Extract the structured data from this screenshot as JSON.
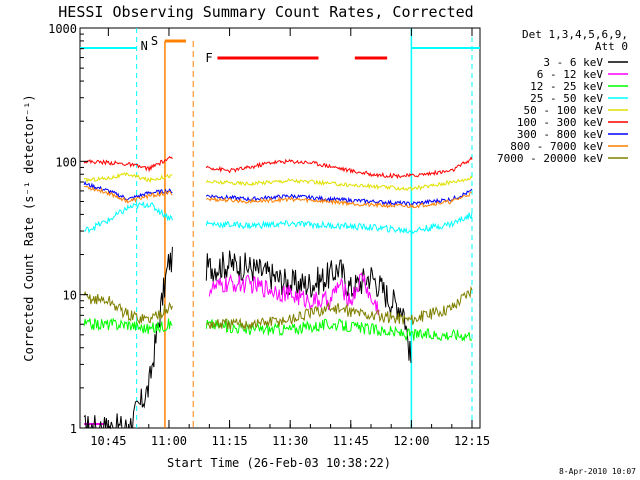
{
  "chart_data": {
    "type": "line",
    "title": "HESSI Observing Summary Count Rates, Corrected",
    "xlabel": "Start Time (26-Feb-03 10:38:22)",
    "ylabel": "Corrected Count Rate (s⁻¹ detector⁻¹)",
    "ylim": [
      1,
      1000
    ],
    "yscale": "log",
    "xlim_minutes": [
      10.633,
      12.283
    ],
    "x_ticks": [
      "10:45",
      "11:00",
      "11:15",
      "11:30",
      "11:45",
      "12:00",
      "12:15"
    ],
    "y_ticks": [
      "1",
      "10",
      "100",
      "1000"
    ],
    "legend_header": [
      "Det 1,3,4,5,6,9,",
      "Att 0"
    ],
    "legend_position": "right",
    "series": [
      {
        "name": "3 - 6 keV",
        "color": "#000000",
        "x": [
          "10:39",
          "10:45",
          "10:50",
          "10:55",
          "10:58",
          "11:00",
          "11:10",
          "11:15",
          "11:20",
          "11:25",
          "11:30",
          "11:35",
          "11:40",
          "11:42",
          "11:45",
          "11:50",
          "11:55",
          "11:58",
          "12:00"
        ],
        "y": [
          1,
          1,
          1,
          2,
          8,
          18,
          16,
          17,
          16,
          14,
          12,
          12,
          14,
          16,
          11,
          14,
          9,
          8,
          3
        ]
      },
      {
        "name": "6 - 12 keV",
        "color": "#ff00ff",
        "x": [
          "11:10",
          "11:15",
          "11:20",
          "11:25",
          "11:30",
          "11:35",
          "11:40",
          "11:42",
          "11:45",
          "11:48",
          "11:50",
          "11:52"
        ],
        "y": [
          11,
          12,
          12,
          11,
          10,
          9,
          9,
          12,
          9,
          14,
          9,
          8
        ]
      },
      {
        "name": "12 - 25 keV",
        "color": "#00ff00",
        "x": [
          "10:39",
          "10:45",
          "10:50",
          "10:55",
          "11:00",
          "11:10",
          "11:20",
          "11:30",
          "11:40",
          "11:50",
          "12:00",
          "12:10",
          "12:15"
        ],
        "y": [
          6,
          6,
          6,
          5.5,
          6,
          6,
          5.5,
          5.5,
          6,
          5.5,
          5,
          5,
          5
        ]
      },
      {
        "name": "25 - 50 keV",
        "color": "#00ffff",
        "x": [
          "10:39",
          "10:45",
          "10:50",
          "10:55",
          "11:00",
          "11:10",
          "11:20",
          "11:30",
          "11:40",
          "11:50",
          "12:00",
          "12:10",
          "12:15"
        ],
        "y": [
          30,
          36,
          45,
          48,
          38,
          34,
          33,
          34,
          33,
          32,
          30,
          34,
          40
        ]
      },
      {
        "name": "50 - 100 keV",
        "color": "#e0e000",
        "x": [
          "10:39",
          "10:45",
          "10:50",
          "10:55",
          "11:00",
          "11:10",
          "11:20",
          "11:30",
          "11:40",
          "11:50",
          "12:00",
          "12:10",
          "12:15"
        ],
        "y": [
          72,
          75,
          80,
          72,
          78,
          70,
          68,
          72,
          68,
          65,
          62,
          70,
          75
        ]
      },
      {
        "name": "100 - 300 keV",
        "color": "#ff0000",
        "x": [
          "10:39",
          "10:45",
          "10:50",
          "10:55",
          "11:00",
          "11:10",
          "11:15",
          "11:20",
          "11:25",
          "11:30",
          "11:35",
          "11:40",
          "11:45",
          "11:50",
          "11:55",
          "12:00",
          "12:10",
          "12:15"
        ],
        "y": [
          100,
          98,
          95,
          88,
          105,
          90,
          85,
          90,
          98,
          100,
          98,
          92,
          85,
          80,
          78,
          78,
          85,
          105
        ]
      },
      {
        "name": "300 - 800 keV",
        "color": "#0000ff",
        "x": [
          "10:39",
          "10:45",
          "10:50",
          "10:55",
          "11:00",
          "11:10",
          "11:20",
          "11:30",
          "11:40",
          "11:50",
          "12:00",
          "12:10",
          "12:15"
        ],
        "y": [
          68,
          60,
          52,
          58,
          60,
          55,
          52,
          55,
          52,
          50,
          48,
          52,
          60
        ]
      },
      {
        "name": "800 - 7000 keV",
        "color": "#ff8000",
        "x": [
          "10:39",
          "10:45",
          "10:50",
          "10:55",
          "11:00",
          "11:10",
          "11:20",
          "11:30",
          "11:40",
          "11:50",
          "12:00",
          "12:10",
          "12:15"
        ],
        "y": [
          65,
          58,
          50,
          55,
          58,
          52,
          50,
          52,
          50,
          47,
          46,
          50,
          58
        ]
      },
      {
        "name": "7000 - 20000 keV",
        "color": "#808000",
        "x": [
          "10:39",
          "10:45",
          "10:50",
          "10:55",
          "11:00",
          "11:10",
          "11:20",
          "11:30",
          "11:40",
          "11:50",
          "12:00",
          "12:10",
          "12:15"
        ],
        "y": [
          9.5,
          9,
          7,
          6.5,
          8,
          6,
          6,
          6.5,
          8,
          7,
          6.5,
          8,
          11
        ]
      }
    ],
    "annotations": [
      {
        "label": "N",
        "color": "#00ffff"
      },
      {
        "label": "S",
        "color": "#ff8000"
      },
      {
        "label": "F",
        "color": "#ff0000"
      }
    ],
    "footer_date": "8-Apr-2010 10:07"
  }
}
